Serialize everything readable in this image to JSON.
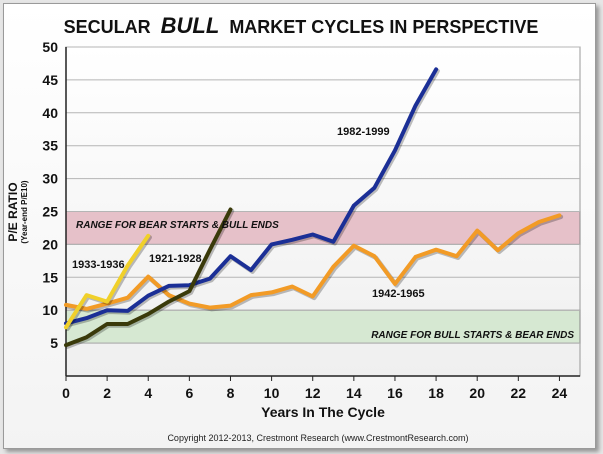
{
  "chart_data": {
    "type": "line",
    "title": {
      "prefix": "SECULAR",
      "emphasis": "BULL",
      "suffix": "MARKET CYCLES IN PERSPECTIVE"
    },
    "xlabel": "Years In The Cycle",
    "ylabel": "P/E RATIO",
    "ylabel_sub": "(Year-end P/E10)",
    "xlim": [
      0,
      25
    ],
    "ylim": [
      0,
      50
    ],
    "x_ticks": [
      0,
      2,
      4,
      6,
      8,
      10,
      12,
      14,
      16,
      18,
      20,
      22,
      24
    ],
    "y_ticks": [
      5,
      10,
      15,
      20,
      25,
      30,
      35,
      40,
      45,
      50
    ],
    "grid": "horizontal",
    "bands": [
      {
        "label": "RANGE FOR BEAR STARTS & BULL ENDS",
        "from": 20,
        "to": 25,
        "color": "#e6c1c9"
      },
      {
        "label": "RANGE FOR BULL STARTS & BEAR ENDS",
        "from": 5,
        "to": 10,
        "color": "#d6e8d2"
      }
    ],
    "series": [
      {
        "name": "1942-1965",
        "color": "#f29b26",
        "x": [
          0,
          1,
          2,
          3,
          4,
          5,
          6,
          7,
          8,
          9,
          10,
          11,
          12,
          13,
          14,
          15,
          16,
          17,
          18,
          19,
          20,
          21,
          22,
          23,
          24
        ],
        "y": [
          10.8,
          10.2,
          11.0,
          11.9,
          15.1,
          12.3,
          11.0,
          10.4,
          10.7,
          12.3,
          12.7,
          13.6,
          12.1,
          16.6,
          19.8,
          18.2,
          14.0,
          18.1,
          19.2,
          18.2,
          22.1,
          19.1,
          21.7,
          23.4,
          24.4
        ]
      },
      {
        "name": "1982-1999",
        "color": "#1b2f96",
        "x": [
          0,
          1,
          2,
          3,
          4,
          5,
          6,
          7,
          8,
          9,
          10,
          11,
          12,
          13,
          14,
          15,
          16,
          17,
          18
        ],
        "y": [
          8.0,
          8.8,
          10.0,
          9.9,
          12.2,
          13.7,
          13.8,
          14.8,
          18.2,
          16.1,
          20.0,
          20.7,
          21.5,
          20.4,
          25.9,
          28.6,
          34.3,
          41.1,
          46.6
        ]
      },
      {
        "name": "1921-1928",
        "color": "#3a3a0a",
        "x": [
          0,
          1,
          2,
          3,
          4,
          5,
          6,
          7,
          8
        ],
        "y": [
          4.7,
          5.9,
          7.9,
          7.9,
          9.4,
          11.3,
          12.9,
          19.2,
          25.3
        ]
      },
      {
        "name": "1933-1936",
        "color": "#f0d02a",
        "x": [
          0,
          1,
          2,
          3,
          4
        ],
        "y": [
          7.4,
          12.3,
          11.3,
          16.8,
          21.3
        ]
      }
    ],
    "annotations": {
      "copyright": "Copyright 2012-2013, Crestmont Research (www.CrestmontResearch.com)"
    }
  }
}
